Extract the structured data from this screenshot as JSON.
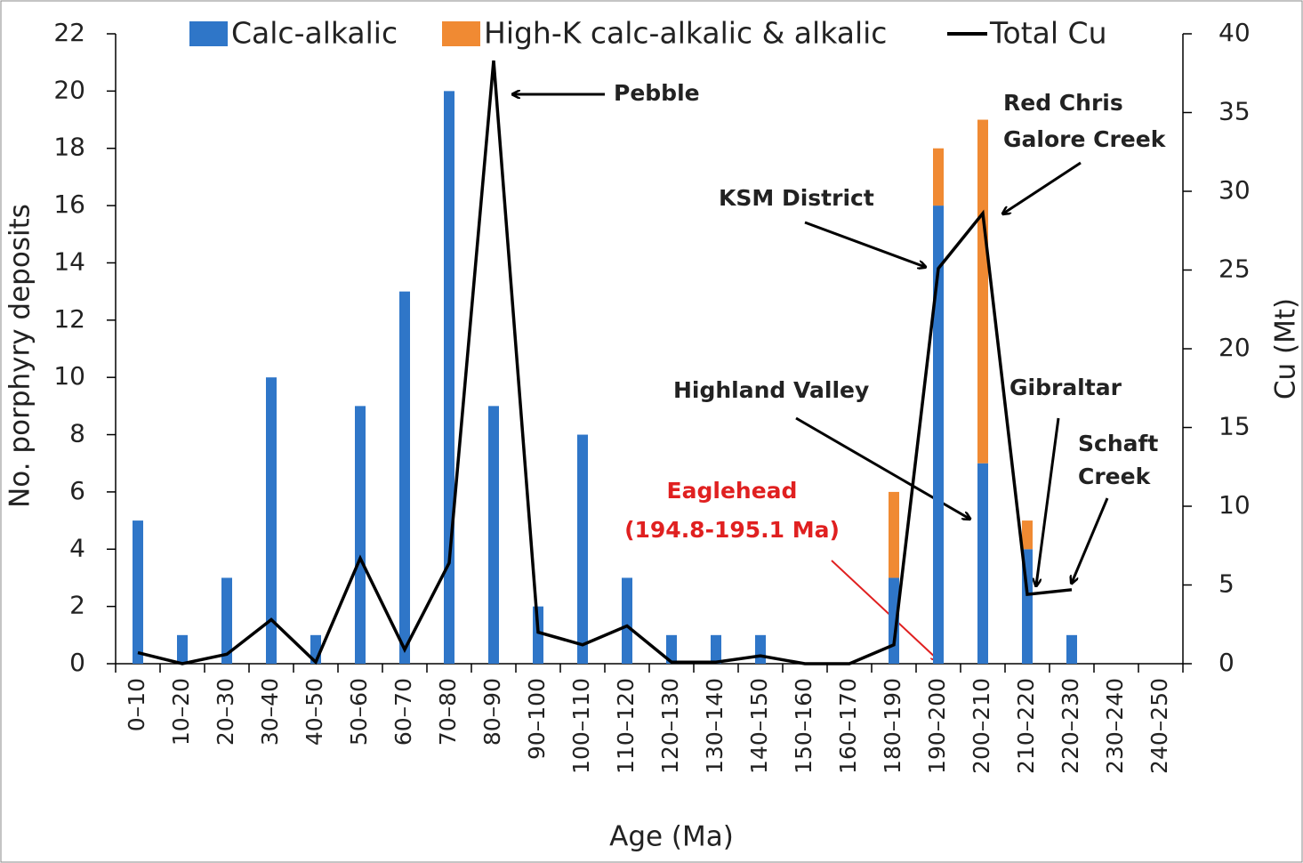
{
  "chart_data": {
    "type": "bar",
    "stacked": true,
    "x_label": "Age (Ma)",
    "y_label": "No. porphyry deposits",
    "y2_label": "Cu (Mt)",
    "categories": [
      "0–10",
      "10–20",
      "20–30",
      "30–40",
      "40–50",
      "50–60",
      "60–70",
      "70–80",
      "80–90",
      "90–100",
      "100–110",
      "110–120",
      "120–130",
      "130–140",
      "140–150",
      "150–160",
      "160–170",
      "180–190",
      "190–200",
      "200–210",
      "210–220",
      "220–230",
      "230–240",
      "240–250"
    ],
    "series": [
      {
        "name": "Calc-alkalic",
        "type": "bar",
        "color": "#2f76c8",
        "values": [
          5,
          1,
          3,
          10,
          1,
          9,
          13,
          20,
          9,
          2,
          8,
          3,
          1,
          1,
          1,
          0,
          0,
          3,
          16,
          7,
          4,
          1,
          0,
          0
        ]
      },
      {
        "name": "High-K calc-alkalic & alkalic",
        "type": "bar",
        "color": "#f08a33",
        "values": [
          0,
          0,
          0,
          0,
          0,
          0,
          0,
          0,
          0,
          0,
          0,
          0,
          0,
          0,
          0,
          0,
          0,
          3,
          2,
          12,
          1,
          0,
          0,
          0
        ]
      },
      {
        "name": "Total Cu",
        "type": "line",
        "axis": "y2",
        "color": "#000000",
        "values": [
          0.7,
          0,
          0.6,
          2.8,
          0.1,
          6.7,
          0.9,
          6.4,
          38.3,
          2.0,
          1.2,
          2.4,
          0.1,
          0.1,
          0.5,
          0,
          0,
          1.2,
          25.1,
          28.6,
          4.4,
          4.7,
          null,
          null
        ]
      }
    ],
    "ylim": [
      0,
      22
    ],
    "yticks": [
      0,
      2,
      4,
      6,
      8,
      10,
      12,
      14,
      16,
      18,
      20,
      22
    ],
    "y2lim": [
      0,
      40
    ],
    "y2ticks": [
      0,
      5,
      10,
      15,
      20,
      25,
      30,
      35,
      40
    ],
    "grid": false,
    "legend": "top",
    "annotations": [
      "Pebble",
      "Red Chris",
      "Galore Creek",
      "KSM District",
      "Highland Valley",
      "Gibraltar",
      "Schaft",
      "Creek",
      "Eaglehead",
      "(194.8-195.1 Ma)"
    ]
  }
}
